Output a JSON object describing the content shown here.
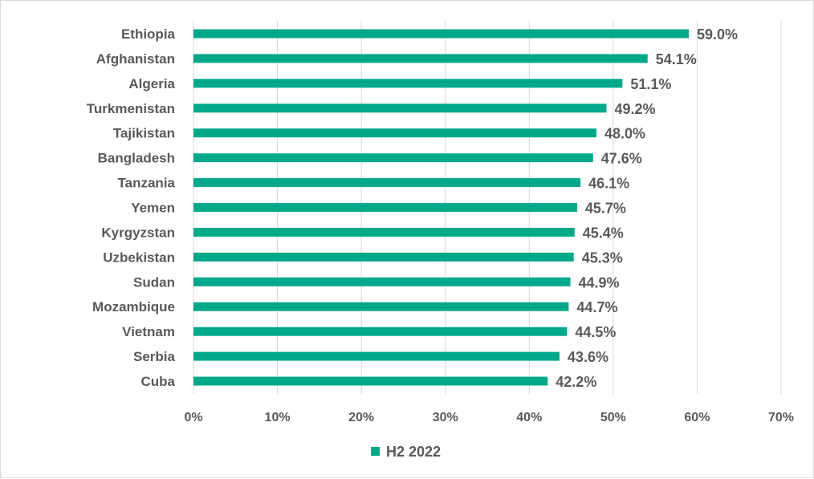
{
  "chart_data": {
    "type": "bar",
    "orientation": "horizontal",
    "title": "",
    "xlabel": "",
    "ylabel": "",
    "categories": [
      "Ethiopia",
      "Afghanistan",
      "Algeria",
      "Turkmenistan",
      "Tajikistan",
      "Bangladesh",
      "Tanzania",
      "Yemen",
      "Kyrgyzstan",
      "Uzbekistan",
      "Sudan",
      "Mozambique",
      "Vietnam",
      "Serbia",
      "Cuba"
    ],
    "series": [
      {
        "name": "H2 2022",
        "color": "#00A88A",
        "values": [
          59.0,
          54.1,
          51.1,
          49.2,
          48.0,
          47.6,
          46.1,
          45.7,
          45.4,
          45.3,
          44.9,
          44.7,
          44.5,
          43.6,
          42.2
        ],
        "labels": [
          "59.0%",
          "54.1%",
          "51.1%",
          "49.2%",
          "48.0%",
          "47.6%",
          "46.1%",
          "45.7%",
          "45.4%",
          "45.3%",
          "44.9%",
          "44.7%",
          "44.5%",
          "43.6%",
          "42.2%"
        ]
      }
    ],
    "xlim": [
      0,
      70
    ],
    "xticks": [
      0,
      10,
      20,
      30,
      40,
      50,
      60,
      70
    ],
    "xtick_labels": [
      "0%",
      "10%",
      "20%",
      "30%",
      "40%",
      "50%",
      "60%",
      "70%"
    ],
    "grid": true,
    "legend": {
      "position": "bottom",
      "entries": [
        "H2 2022"
      ]
    }
  }
}
